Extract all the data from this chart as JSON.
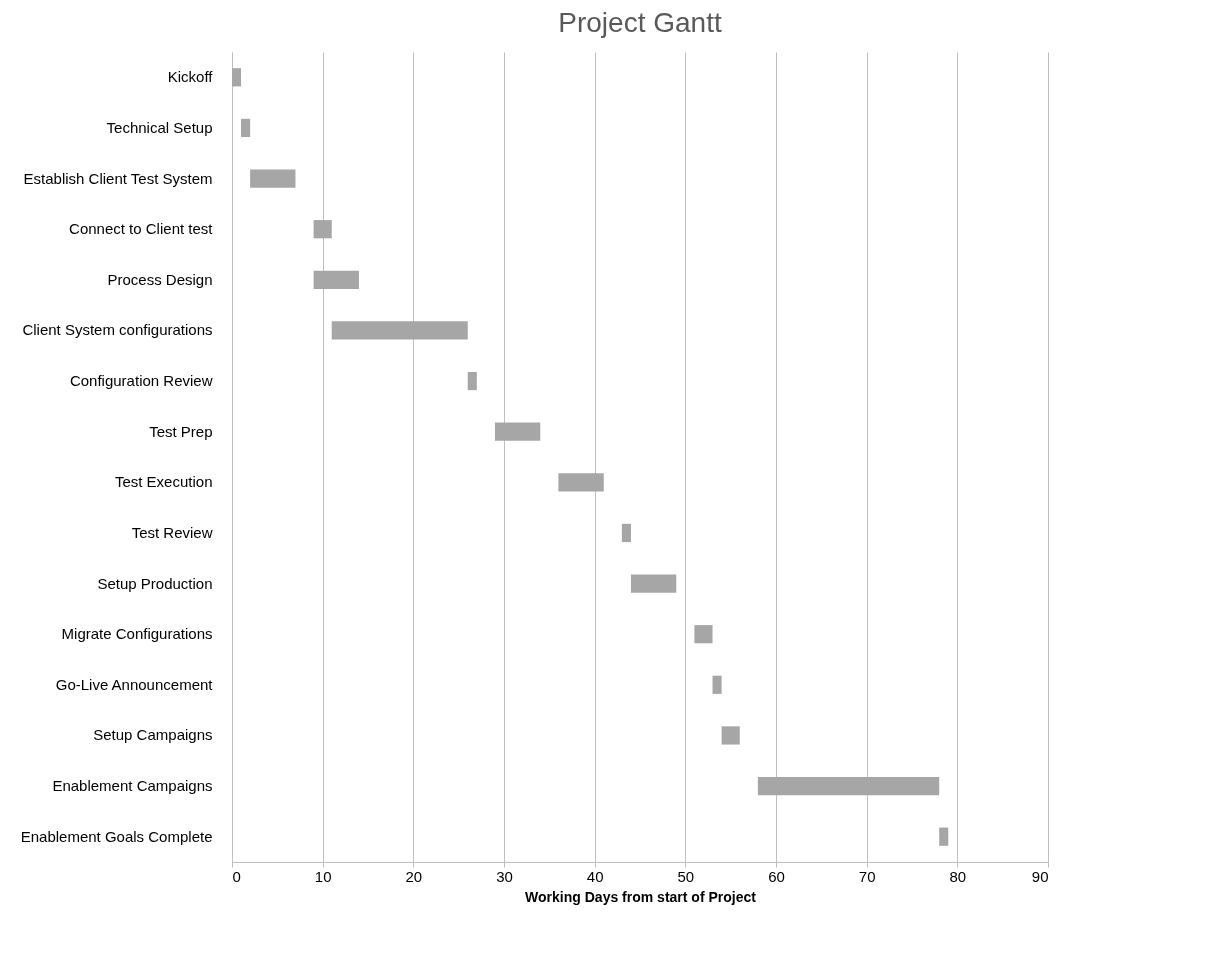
{
  "chart_data": {
    "type": "bar",
    "title": "Project Gantt",
    "xlabel": "Working Days from start of Project",
    "orientation": "horizontal",
    "categories": [
      "Kickoff",
      "Technical Setup",
      "Establish Client Test System",
      "Connect to Client test",
      "Process Design",
      "Client System configurations",
      "Configuration Review",
      "Test Prep",
      "Test Execution",
      "Test Review",
      "Setup Production",
      "Migrate Configurations",
      "Go-Live Announcement",
      "Setup Campaigns",
      "Enablement Campaigns",
      "Enablement Goals Complete"
    ],
    "base": [
      0,
      1,
      2,
      9,
      9,
      11,
      26,
      29,
      36,
      43,
      44,
      51,
      53,
      54,
      58,
      78
    ],
    "values": [
      1,
      1,
      5,
      2,
      5,
      15,
      1,
      5,
      5,
      1,
      5,
      2,
      1,
      2,
      20,
      1
    ],
    "color": "#a6a6a6",
    "xlim": [
      0,
      90
    ],
    "xticks": [
      0,
      10,
      20,
      30,
      40,
      50,
      60,
      70,
      80,
      90
    ],
    "grid": "x"
  }
}
